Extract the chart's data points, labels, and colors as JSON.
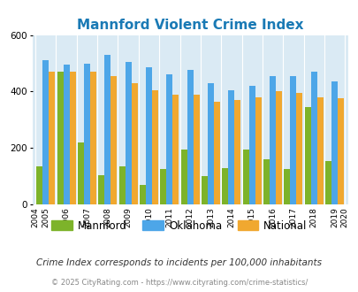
{
  "title": "Mannford Violent Crime Index",
  "years": [
    2005,
    2006,
    2007,
    2008,
    2009,
    2010,
    2011,
    2012,
    2013,
    2014,
    2015,
    2016,
    2017,
    2018,
    2019
  ],
  "mannford": [
    135,
    470,
    220,
    105,
    135,
    70,
    125,
    195,
    100,
    130,
    195,
    160,
    125,
    345,
    155
  ],
  "oklahoma": [
    510,
    495,
    500,
    530,
    505,
    485,
    460,
    475,
    430,
    405,
    420,
    455,
    455,
    470,
    435
  ],
  "national": [
    470,
    470,
    470,
    455,
    430,
    405,
    390,
    390,
    365,
    370,
    380,
    400,
    395,
    380,
    375
  ],
  "mannford_color": "#7db32a",
  "oklahoma_color": "#4da6e8",
  "national_color": "#f0a830",
  "bg_color": "#daeaf4",
  "title_color": "#1a7ab5",
  "ylabel_max": 600,
  "footnote": "Crime Index corresponds to incidents per 100,000 inhabitants",
  "copyright": "© 2025 CityRating.com - https://www.cityrating.com/crime-statistics/"
}
